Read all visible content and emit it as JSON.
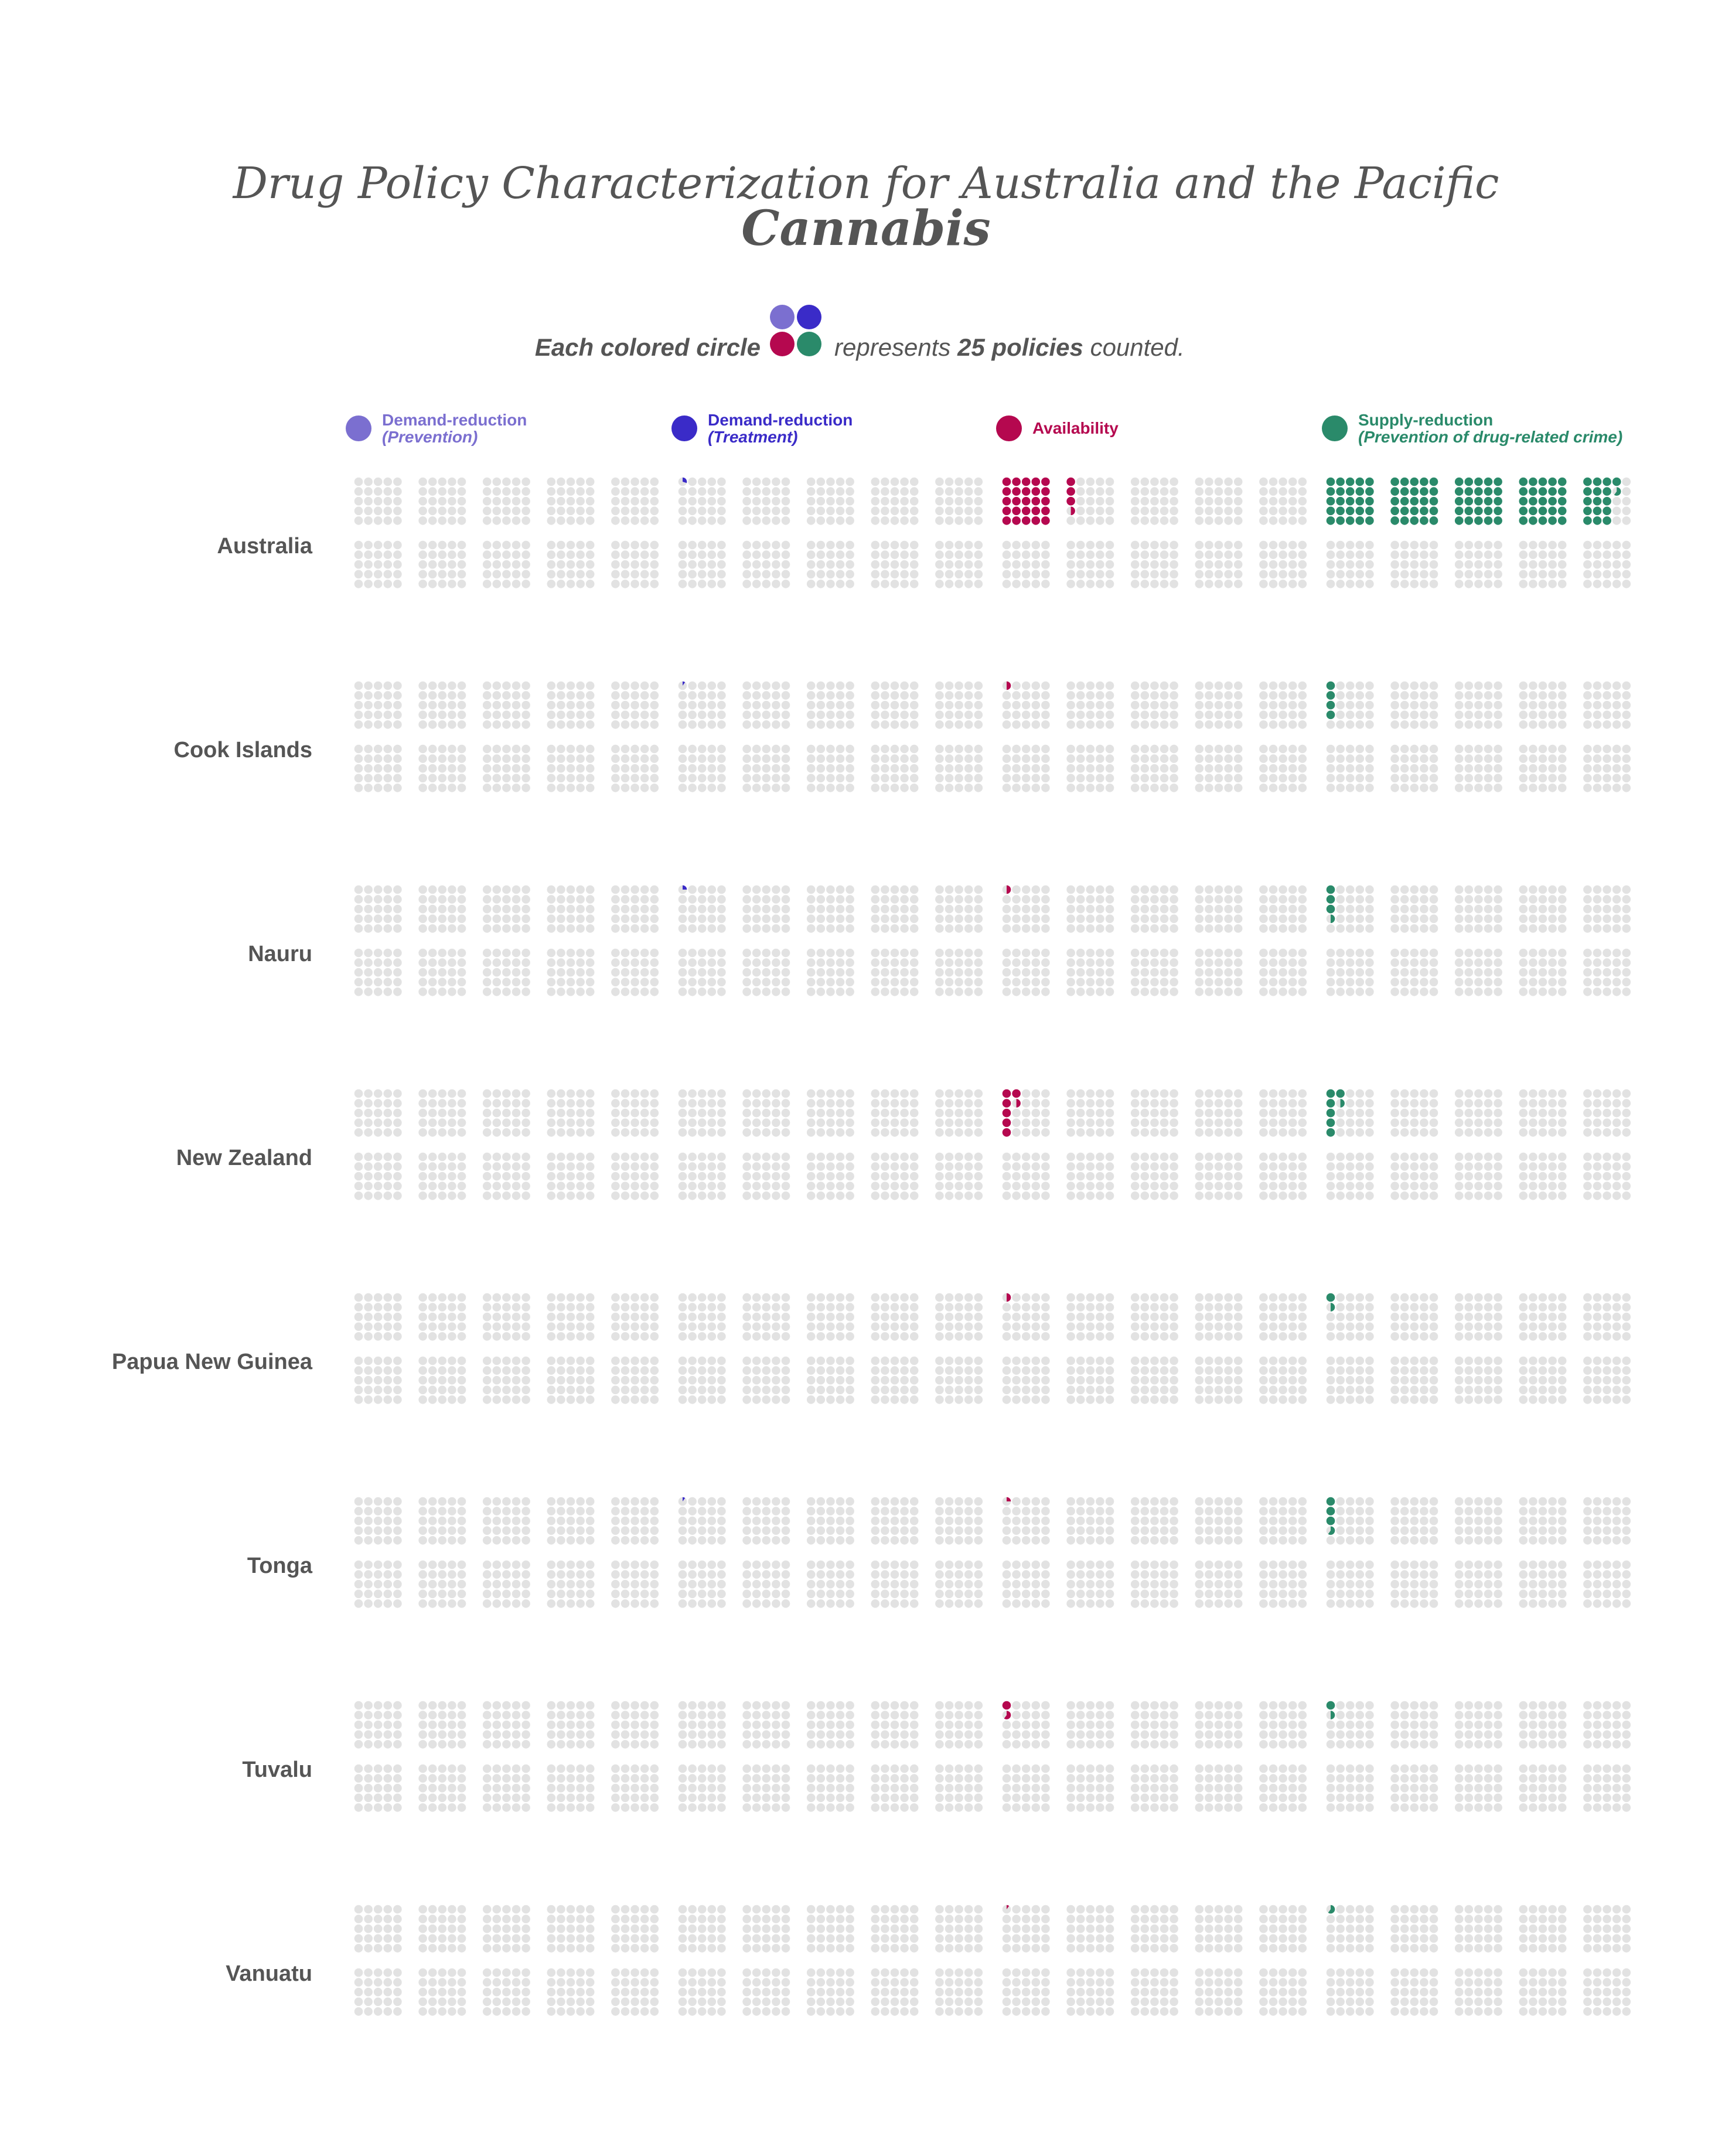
{
  "title_line1": "Drug Policy Characterization for Australia and the Pacific",
  "title_line2": "Cannabis",
  "unit_note": {
    "prefix": "Each colored circle",
    "middle": "represents",
    "count": "25 policies",
    "suffix": "counted."
  },
  "colors": {
    "prevention": "#7b6fd0",
    "treatment": "#3a2bc8",
    "availability": "#b5084f",
    "supply": "#2a8a6a",
    "empty": "#e2e2e2",
    "text": "#555555"
  },
  "legend": [
    {
      "key": "prevention",
      "line1": "Demand-reduction",
      "line2": "(Prevention)"
    },
    {
      "key": "treatment",
      "line1": "Demand-reduction",
      "line2": "(Treatment)"
    },
    {
      "key": "availability",
      "line1": "Availability",
      "line2": ""
    },
    {
      "key": "supply",
      "line1": "Supply-reduction",
      "line2": "(Prevention of drug-related crime)"
    }
  ],
  "chart_data": {
    "type": "waffle",
    "unit": "policies per circle",
    "unit_value": 25,
    "categories": [
      "Demand-reduction (Prevention)",
      "Demand-reduction (Treatment)",
      "Availability",
      "Supply-reduction (Prevention of drug-related crime)"
    ],
    "countries": [
      {
        "name": "Australia",
        "circles": [
          0,
          0.3,
          28.5,
          116.6
        ]
      },
      {
        "name": "Cook Islands",
        "circles": [
          0,
          0.1,
          0.5,
          4
        ]
      },
      {
        "name": "Nauru",
        "circles": [
          0,
          0.25,
          0.5,
          3.5
        ]
      },
      {
        "name": "New Zealand",
        "circles": [
          0,
          0,
          6.5,
          6.5
        ]
      },
      {
        "name": "Papua New Guinea",
        "circles": [
          0,
          0,
          0.5,
          1.5
        ]
      },
      {
        "name": "Tonga",
        "circles": [
          0,
          0.1,
          0.25,
          3.6
        ]
      },
      {
        "name": "Tuvalu",
        "circles": [
          0,
          0,
          1.6,
          1.5
        ]
      },
      {
        "name": "Vanuatu",
        "circles": [
          0,
          0,
          0.1,
          0.6
        ]
      }
    ]
  }
}
